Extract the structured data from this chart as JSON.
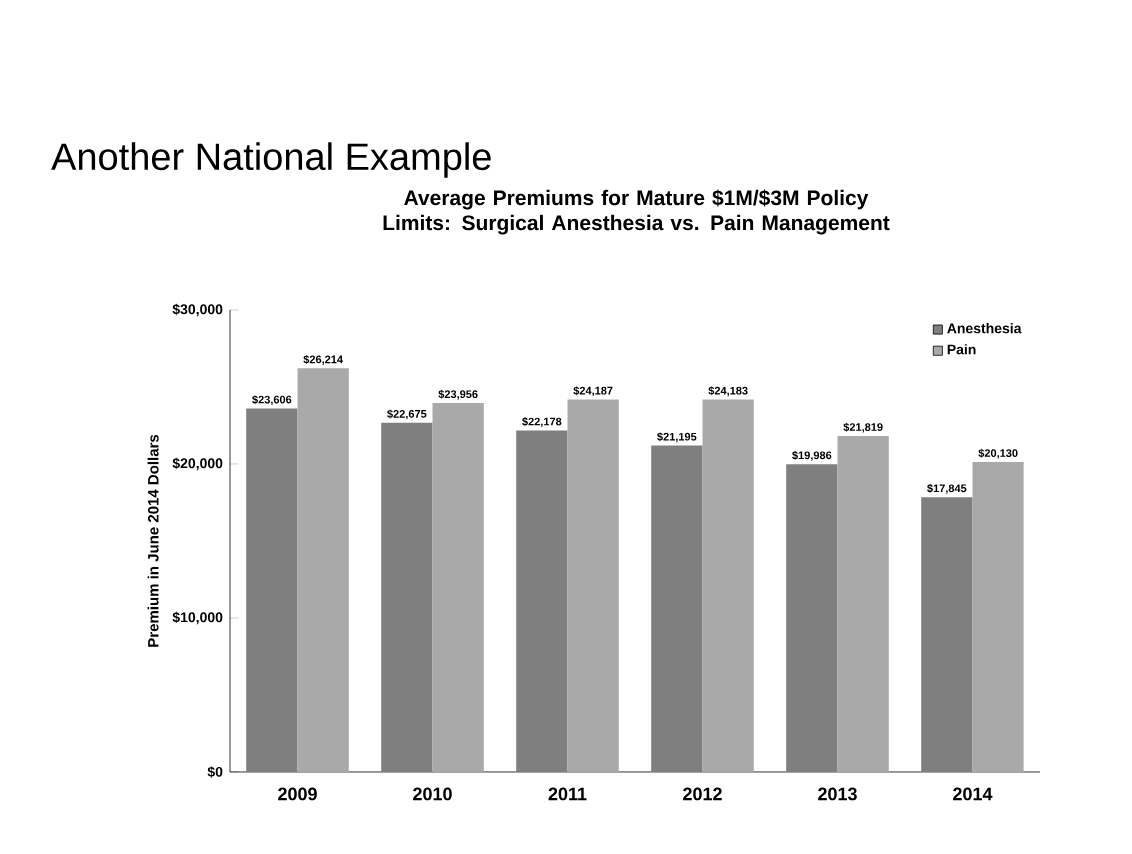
{
  "chart_data": {
    "type": "bar",
    "title": "Another National Example",
    "subtitle": "Average Premiums for Mature $1M/$3M Policy Limits: Surgical Anesthesia vs. Pain Management",
    "ylabel": "Premium in June 2014 Dollars",
    "categories": [
      "2009",
      "2010",
      "2011",
      "2012",
      "2013",
      "2014"
    ],
    "series": [
      {
        "name": "Anesthesia",
        "color": "#7f7f7f",
        "values": [
          23606,
          22675,
          22178,
          21195,
          19986,
          17845
        ],
        "value_labels": [
          "$23,606",
          "$22,675",
          "$22,178",
          "$21,195",
          "$19,986",
          "$17,845"
        ]
      },
      {
        "name": "Pain",
        "color": "#a9a9a9",
        "values": [
          26214,
          23956,
          24187,
          24183,
          21819,
          20130
        ],
        "value_labels": [
          "$26,214",
          "$23,956",
          "$24,187",
          "$24,183",
          "$21,819",
          "$20,130"
        ]
      }
    ],
    "ylim": [
      0,
      30000
    ],
    "yticks": [
      {
        "value": 0,
        "label": "$0"
      },
      {
        "value": 10000,
        "label": "$10,000"
      },
      {
        "value": 20000,
        "label": "$20,000"
      },
      {
        "value": 30000,
        "label": "$30,000"
      }
    ],
    "legend": "top right",
    "grid": false
  }
}
